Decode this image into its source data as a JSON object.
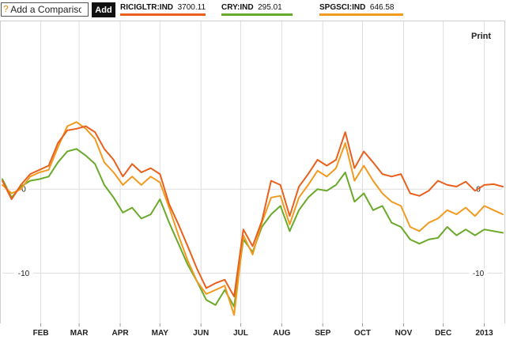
{
  "toolbar": {
    "compare_icon": "?",
    "compare_placeholder": "Add a Comparison",
    "add_label": "Add",
    "print_label": "Print"
  },
  "chart_data": {
    "type": "line",
    "xlim": [
      "2012-01-03",
      "2013-01-15"
    ],
    "ylim": [
      -16,
      20
    ],
    "grid": true,
    "x_ticks": [
      {
        "label": "FEB",
        "date": "2012-02-01"
      },
      {
        "label": "MAR",
        "date": "2012-03-01"
      },
      {
        "label": "APR",
        "date": "2012-04-01"
      },
      {
        "label": "MAY",
        "date": "2012-05-01"
      },
      {
        "label": "JUN",
        "date": "2012-06-01"
      },
      {
        "label": "JUL",
        "date": "2012-07-01"
      },
      {
        "label": "AUG",
        "date": "2012-08-01"
      },
      {
        "label": "SEP",
        "date": "2012-09-01"
      },
      {
        "label": "OCT",
        "date": "2012-10-01"
      },
      {
        "label": "NOV",
        "date": "2012-11-01"
      },
      {
        "label": "DEC",
        "date": "2012-12-01"
      },
      {
        "label": "2013",
        "date": "2013-01-01"
      }
    ],
    "y_ticks": [
      {
        "label": "0",
        "value": 0
      },
      {
        "label": "-10",
        "value": -10
      }
    ],
    "series": [
      {
        "name": "RICIGLTR:IND",
        "last": "3700.11",
        "color": "#e8601c",
        "dates": [
          "2012-01-03",
          "2012-01-10",
          "2012-01-17",
          "2012-01-24",
          "2012-01-31",
          "2012-02-07",
          "2012-02-14",
          "2012-02-21",
          "2012-02-28",
          "2012-03-06",
          "2012-03-13",
          "2012-03-20",
          "2012-03-27",
          "2012-04-03",
          "2012-04-10",
          "2012-04-17",
          "2012-04-24",
          "2012-05-01",
          "2012-05-08",
          "2012-05-15",
          "2012-05-22",
          "2012-05-29",
          "2012-06-05",
          "2012-06-12",
          "2012-06-19",
          "2012-06-26",
          "2012-07-03",
          "2012-07-10",
          "2012-07-17",
          "2012-07-24",
          "2012-07-31",
          "2012-08-07",
          "2012-08-14",
          "2012-08-21",
          "2012-08-28",
          "2012-09-04",
          "2012-09-11",
          "2012-09-18",
          "2012-09-25",
          "2012-10-02",
          "2012-10-09",
          "2012-10-16",
          "2012-10-23",
          "2012-10-30",
          "2012-11-06",
          "2012-11-13",
          "2012-11-20",
          "2012-11-27",
          "2012-12-04",
          "2012-12-11",
          "2012-12-18",
          "2012-12-25",
          "2013-01-01",
          "2013-01-08",
          "2013-01-15"
        ],
        "values": [
          1.0,
          -1.2,
          0.5,
          1.8,
          2.3,
          2.8,
          5.5,
          7.0,
          7.2,
          7.5,
          6.8,
          4.8,
          3.5,
          1.5,
          3.0,
          2.0,
          2.5,
          1.8,
          -1.8,
          -4.2,
          -6.8,
          -9.5,
          -11.8,
          -11.2,
          -10.8,
          -12.8,
          -4.8,
          -6.8,
          -3.8,
          1.0,
          0.5,
          -3.2,
          0.3,
          1.8,
          3.5,
          2.8,
          3.5,
          6.8,
          2.5,
          4.5,
          3.2,
          1.8,
          1.5,
          1.8,
          -0.5,
          -0.8,
          -0.2,
          1.0,
          0.5,
          0.3,
          0.9,
          -0.2,
          0.5,
          0.6,
          0.3
        ]
      },
      {
        "name": "CRY:IND",
        "last": "295.01",
        "color": "#6aaa2a",
        "dates": [
          "2012-01-03",
          "2012-01-10",
          "2012-01-17",
          "2012-01-24",
          "2012-01-31",
          "2012-02-07",
          "2012-02-14",
          "2012-02-21",
          "2012-02-28",
          "2012-03-06",
          "2012-03-13",
          "2012-03-20",
          "2012-03-27",
          "2012-04-03",
          "2012-04-10",
          "2012-04-17",
          "2012-04-24",
          "2012-05-01",
          "2012-05-08",
          "2012-05-15",
          "2012-05-22",
          "2012-05-29",
          "2012-06-05",
          "2012-06-12",
          "2012-06-19",
          "2012-06-26",
          "2012-07-03",
          "2012-07-10",
          "2012-07-17",
          "2012-07-24",
          "2012-07-31",
          "2012-08-07",
          "2012-08-14",
          "2012-08-21",
          "2012-08-28",
          "2012-09-04",
          "2012-09-11",
          "2012-09-18",
          "2012-09-25",
          "2012-10-02",
          "2012-10-09",
          "2012-10-16",
          "2012-10-23",
          "2012-10-30",
          "2012-11-06",
          "2012-11-13",
          "2012-11-20",
          "2012-11-27",
          "2012-12-04",
          "2012-12-11",
          "2012-12-18",
          "2012-12-25",
          "2013-01-01",
          "2013-01-08",
          "2013-01-15"
        ],
        "values": [
          1.2,
          -1.0,
          0.3,
          1.0,
          1.2,
          1.5,
          3.2,
          4.5,
          4.8,
          4.0,
          3.0,
          0.5,
          -1.0,
          -2.8,
          -2.2,
          -3.5,
          -3.0,
          -1.2,
          -4.0,
          -6.5,
          -9.0,
          -11.0,
          -13.2,
          -13.8,
          -12.0,
          -14.0,
          -6.0,
          -7.5,
          -4.5,
          -3.0,
          -2.0,
          -5.0,
          -2.5,
          -1.0,
          0.0,
          -0.2,
          0.5,
          2.0,
          -1.5,
          -0.5,
          -2.5,
          -2.0,
          -4.0,
          -4.5,
          -6.0,
          -6.5,
          -6.0,
          -5.8,
          -4.5,
          -5.5,
          -4.8,
          -5.5,
          -4.8,
          -5.0,
          -5.2
        ]
      },
      {
        "name": "SPGSCI:IND",
        "last": "646.58",
        "color": "#f29a1f",
        "dates": [
          "2012-01-03",
          "2012-01-10",
          "2012-01-17",
          "2012-01-24",
          "2012-01-31",
          "2012-02-07",
          "2012-02-14",
          "2012-02-21",
          "2012-02-28",
          "2012-03-06",
          "2012-03-13",
          "2012-03-20",
          "2012-03-27",
          "2012-04-03",
          "2012-04-10",
          "2012-04-17",
          "2012-04-24",
          "2012-05-01",
          "2012-05-08",
          "2012-05-15",
          "2012-05-22",
          "2012-05-29",
          "2012-06-05",
          "2012-06-12",
          "2012-06-19",
          "2012-06-26",
          "2012-07-03",
          "2012-07-10",
          "2012-07-17",
          "2012-07-24",
          "2012-07-31",
          "2012-08-07",
          "2012-08-14",
          "2012-08-21",
          "2012-08-28",
          "2012-09-04",
          "2012-09-11",
          "2012-09-18",
          "2012-09-25",
          "2012-10-02",
          "2012-10-09",
          "2012-10-16",
          "2012-10-23",
          "2012-10-30",
          "2012-11-06",
          "2012-11-13",
          "2012-11-20",
          "2012-11-27",
          "2012-12-04",
          "2012-12-11",
          "2012-12-18",
          "2012-12-25",
          "2013-01-01",
          "2013-01-08",
          "2013-01-15"
        ],
        "values": [
          0.5,
          -0.5,
          0.0,
          1.5,
          2.0,
          2.3,
          5.0,
          7.5,
          8.0,
          7.2,
          6.0,
          3.2,
          2.0,
          0.5,
          1.5,
          0.5,
          1.5,
          0.8,
          -2.2,
          -5.5,
          -8.5,
          -11.0,
          -12.5,
          -12.0,
          -11.5,
          -15.0,
          -5.5,
          -7.8,
          -4.0,
          -1.0,
          -0.8,
          -4.2,
          -1.0,
          0.5,
          2.2,
          1.5,
          2.5,
          5.5,
          1.0,
          2.8,
          1.0,
          -0.5,
          -1.5,
          -2.0,
          -4.5,
          -5.0,
          -4.0,
          -3.5,
          -2.5,
          -3.0,
          -2.2,
          -3.2,
          -2.0,
          -2.5,
          -3.0
        ]
      }
    ]
  }
}
